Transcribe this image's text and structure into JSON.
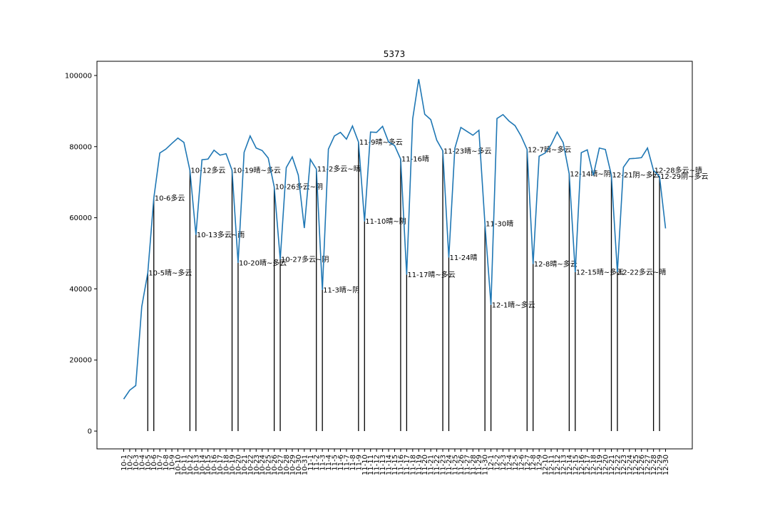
{
  "chart_data": {
    "type": "line",
    "title": "5373",
    "xlabel": "",
    "ylabel": "",
    "ylim": [
      -5000,
      104000
    ],
    "yticks": [
      0,
      20000,
      40000,
      60000,
      80000,
      100000
    ],
    "grid": false,
    "line_color": "#1f77b4",
    "marker_color": "#000000",
    "categories": [
      "10-1",
      "10-2",
      "10-3",
      "10-4",
      "10-5",
      "10-6",
      "10-7",
      "10-8",
      "10-9",
      "10-10",
      "10-11",
      "10-12",
      "10-13",
      "10-14",
      "10-15",
      "10-16",
      "10-17",
      "10-18",
      "10-19",
      "10-20",
      "10-21",
      "10-22",
      "10-23",
      "10-24",
      "10-25",
      "10-26",
      "10-27",
      "10-28",
      "10-29",
      "10-30",
      "10-31",
      "11-1",
      "11-2",
      "11-3",
      "11-4",
      "11-5",
      "11-6",
      "11-7",
      "11-8",
      "11-9",
      "11-10",
      "11-11",
      "11-12",
      "11-13",
      "11-14",
      "11-15",
      "11-16",
      "11-17",
      "11-18",
      "11-19",
      "11-20",
      "11-21",
      "11-22",
      "11-23",
      "11-24",
      "11-25",
      "11-26",
      "11-27",
      "11-28",
      "11-29",
      "11-30",
      "12-1",
      "12-2",
      "12-3",
      "12-4",
      "12-5",
      "12-6",
      "12-7",
      "12-8",
      "12-9",
      "12-10",
      "12-11",
      "12-12",
      "12-13",
      "12-14",
      "12-15",
      "12-16",
      "12-17",
      "12-18",
      "12-19",
      "12-20",
      "12-21",
      "12-22",
      "12-23",
      "12-24",
      "12-25",
      "12-26",
      "12-27",
      "12-28",
      "12-29",
      "12-30"
    ],
    "values": [
      9000,
      11500,
      12800,
      35000,
      44500,
      65500,
      78200,
      79300,
      80900,
      82400,
      81200,
      73300,
      55200,
      76300,
      76500,
      79000,
      77600,
      78000,
      73300,
      47300,
      78400,
      83000,
      79600,
      78900,
      76800,
      68700,
      48300,
      74100,
      77100,
      72000,
      57100,
      76400,
      73700,
      39700,
      79300,
      83000,
      84000,
      82100,
      85800,
      81300,
      59000,
      84100,
      84000,
      85700,
      81300,
      80300,
      76500,
      44000,
      87800,
      99000,
      89100,
      87600,
      81800,
      78800,
      48800,
      79500,
      85400,
      84300,
      83200,
      84600,
      58300,
      35500,
      87900,
      89000,
      87200,
      85900,
      83000,
      79200,
      47000,
      77300,
      78200,
      80600,
      84100,
      81100,
      72300,
      44700,
      78300,
      79100,
      71900,
      79600,
      79200,
      72000,
      44700,
      74200,
      76600,
      76700,
      76900,
      79600,
      73300,
      71600,
      57000
    ],
    "markers": [
      {
        "x": "10-5",
        "y": 44500,
        "label": "10-5晴~多云"
      },
      {
        "x": "10-6",
        "y": 65500,
        "label": "10-6多云"
      },
      {
        "x": "10-12",
        "y": 73300,
        "label": "10-12多云"
      },
      {
        "x": "10-13",
        "y": 55200,
        "label": "10-13多云~雨"
      },
      {
        "x": "10-19",
        "y": 73300,
        "label": "10-19晴~多云"
      },
      {
        "x": "10-20",
        "y": 47300,
        "label": "10-20晴~多云"
      },
      {
        "x": "10-26",
        "y": 68700,
        "label": "10-26多云~阴"
      },
      {
        "x": "10-27",
        "y": 48300,
        "label": "10-27多云~阴"
      },
      {
        "x": "11-2",
        "y": 73700,
        "label": "11-2多云~晴"
      },
      {
        "x": "11-3",
        "y": 39700,
        "label": "11-3晴~阴"
      },
      {
        "x": "11-9",
        "y": 81300,
        "label": "11-9晴~多云"
      },
      {
        "x": "11-10",
        "y": 59000,
        "label": "11-10晴~阴"
      },
      {
        "x": "11-16",
        "y": 76500,
        "label": "11-16晴"
      },
      {
        "x": "11-17",
        "y": 44000,
        "label": "11-17晴~多云"
      },
      {
        "x": "11-23",
        "y": 78800,
        "label": "11-23晴~多云"
      },
      {
        "x": "11-24",
        "y": 48800,
        "label": "11-24晴"
      },
      {
        "x": "11-30",
        "y": 58300,
        "label": "11-30晴"
      },
      {
        "x": "12-1",
        "y": 35500,
        "label": "12-1晴~多云"
      },
      {
        "x": "12-7",
        "y": 79200,
        "label": "12-7晴~多云"
      },
      {
        "x": "12-8",
        "y": 47000,
        "label": "12-8晴~多云"
      },
      {
        "x": "12-14",
        "y": 72300,
        "label": "12-14晴~阴"
      },
      {
        "x": "12-15",
        "y": 44700,
        "label": "12-15晴~多云"
      },
      {
        "x": "12-21",
        "y": 72000,
        "label": "12-21阴~多云"
      },
      {
        "x": "12-22",
        "y": 44700,
        "label": "12-22多云~晴"
      },
      {
        "x": "12-28",
        "y": 73300,
        "label": "12-28多云~晴"
      },
      {
        "x": "12-29",
        "y": 71600,
        "label": "12-29阴~多云"
      }
    ]
  }
}
